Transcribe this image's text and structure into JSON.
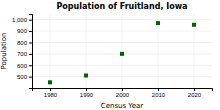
{
  "chart_data": {
    "type": "scatter",
    "title": "Population of Fruitland, Iowa",
    "xlabel": "Census Year",
    "ylabel": "Population",
    "x": [
      1980,
      1990,
      2000,
      2010,
      2020
    ],
    "values": [
      450,
      510,
      700,
      970,
      955
    ],
    "color": "#006400",
    "marker": "square",
    "xlim": [
      1975,
      2025
    ],
    "ylim": [
      400,
      1050
    ],
    "xticks": [
      1980,
      1990,
      2000,
      2010,
      2020
    ],
    "yticks": [
      500,
      600,
      700,
      800,
      900,
      {
        "value": 1000,
        "label": "1,000"
      }
    ],
    "grid": true
  }
}
